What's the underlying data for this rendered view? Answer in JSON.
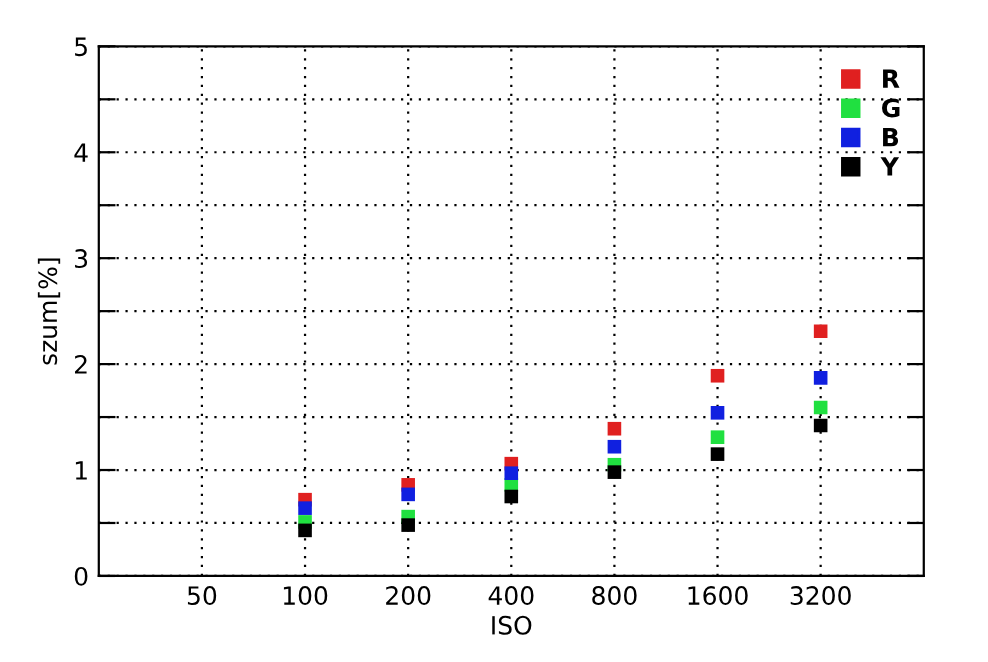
{
  "chart_data": {
    "type": "scatter",
    "xlabel": "ISO",
    "ylabel": "szum[%]",
    "x": [
      100,
      200,
      400,
      800,
      1600,
      3200
    ],
    "series": [
      {
        "name": "R",
        "color": "#e02020",
        "values": [
          0.72,
          0.86,
          1.06,
          1.39,
          1.89,
          2.31
        ]
      },
      {
        "name": "G",
        "color": "#20e040",
        "values": [
          0.51,
          0.56,
          0.86,
          1.05,
          1.31,
          1.59
        ]
      },
      {
        "name": "B",
        "color": "#1020e0",
        "values": [
          0.64,
          0.77,
          0.97,
          1.22,
          1.54,
          1.87
        ]
      },
      {
        "name": "Y",
        "color": "#000000",
        "values": [
          0.43,
          0.48,
          0.75,
          0.98,
          1.15,
          1.42
        ]
      }
    ],
    "log": "x",
    "xlim": [
      25,
      6400
    ],
    "xticks": [
      50,
      100,
      200,
      400,
      800,
      1600,
      3200
    ],
    "ylim": [
      0,
      5
    ],
    "yticks": [
      0,
      {
        "value": 0.5,
        "label": null
      },
      1,
      {
        "value": 1.5,
        "label": null
      },
      2,
      {
        "value": 2.5,
        "label": null
      },
      3,
      {
        "value": 3.5,
        "label": null
      },
      4,
      {
        "value": 4.5,
        "label": null
      },
      5
    ],
    "grid": true,
    "legend": "top right",
    "marker": "square"
  }
}
